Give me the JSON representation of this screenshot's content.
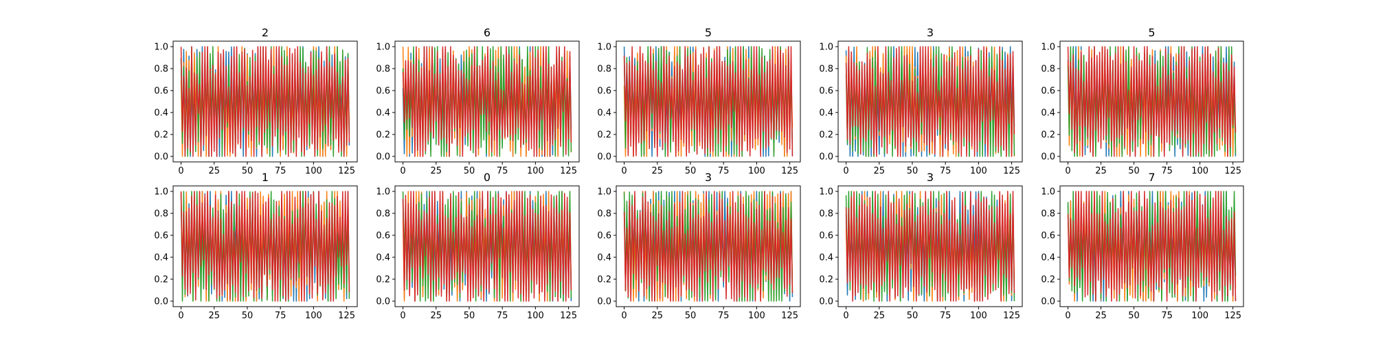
{
  "colors": {
    "series": [
      "#1f77b4",
      "#ff7f0e",
      "#2ca02c",
      "#d62728"
    ],
    "axes": "#000000",
    "background": "#ffffff"
  },
  "chart_data": [
    {
      "type": "line",
      "title": "2",
      "xlim": [
        -6,
        133
      ],
      "ylim": [
        -0.05,
        1.05
      ],
      "x_ticks": [
        0,
        25,
        50,
        75,
        100,
        125
      ],
      "y_ticks": [
        0.0,
        0.2,
        0.4,
        0.6,
        0.8,
        1.0
      ],
      "grid": false,
      "n_points": 128,
      "series_count": 4,
      "seed": 11
    },
    {
      "type": "line",
      "title": "6",
      "xlim": [
        -6,
        133
      ],
      "ylim": [
        -0.05,
        1.05
      ],
      "x_ticks": [
        0,
        25,
        50,
        75,
        100,
        125
      ],
      "y_ticks": [
        0.0,
        0.2,
        0.4,
        0.6,
        0.8,
        1.0
      ],
      "grid": false,
      "n_points": 128,
      "series_count": 4,
      "seed": 23
    },
    {
      "type": "line",
      "title": "5",
      "xlim": [
        -6,
        133
      ],
      "ylim": [
        -0.05,
        1.05
      ],
      "x_ticks": [
        0,
        25,
        50,
        75,
        100,
        125
      ],
      "y_ticks": [
        0.0,
        0.2,
        0.4,
        0.6,
        0.8,
        1.0
      ],
      "grid": false,
      "n_points": 128,
      "series_count": 4,
      "seed": 37
    },
    {
      "type": "line",
      "title": "3",
      "xlim": [
        -6,
        133
      ],
      "ylim": [
        -0.05,
        1.05
      ],
      "x_ticks": [
        0,
        25,
        50,
        75,
        100,
        125
      ],
      "y_ticks": [
        0.0,
        0.2,
        0.4,
        0.6,
        0.8,
        1.0
      ],
      "grid": false,
      "n_points": 128,
      "series_count": 4,
      "seed": 41
    },
    {
      "type": "line",
      "title": "5",
      "xlim": [
        -6,
        133
      ],
      "ylim": [
        -0.05,
        1.05
      ],
      "x_ticks": [
        0,
        25,
        50,
        75,
        100,
        125
      ],
      "y_ticks": [
        0.0,
        0.2,
        0.4,
        0.6,
        0.8,
        1.0
      ],
      "grid": false,
      "n_points": 128,
      "series_count": 4,
      "seed": 53
    },
    {
      "type": "line",
      "title": "1",
      "xlim": [
        -6,
        133
      ],
      "ylim": [
        -0.05,
        1.05
      ],
      "x_ticks": [
        0,
        25,
        50,
        75,
        100,
        125
      ],
      "y_ticks": [
        0.0,
        0.2,
        0.4,
        0.6,
        0.8,
        1.0
      ],
      "grid": false,
      "n_points": 128,
      "series_count": 4,
      "seed": 67
    },
    {
      "type": "line",
      "title": "0",
      "xlim": [
        -6,
        133
      ],
      "ylim": [
        -0.05,
        1.05
      ],
      "x_ticks": [
        0,
        25,
        50,
        75,
        100,
        125
      ],
      "y_ticks": [
        0.0,
        0.2,
        0.4,
        0.6,
        0.8,
        1.0
      ],
      "grid": false,
      "n_points": 128,
      "series_count": 4,
      "seed": 79
    },
    {
      "type": "line",
      "title": "3",
      "xlim": [
        -6,
        133
      ],
      "ylim": [
        -0.05,
        1.05
      ],
      "x_ticks": [
        0,
        25,
        50,
        75,
        100,
        125
      ],
      "y_ticks": [
        0.0,
        0.2,
        0.4,
        0.6,
        0.8,
        1.0
      ],
      "grid": false,
      "n_points": 128,
      "series_count": 4,
      "seed": 83
    },
    {
      "type": "line",
      "title": "3",
      "xlim": [
        -6,
        133
      ],
      "ylim": [
        -0.05,
        1.05
      ],
      "x_ticks": [
        0,
        25,
        50,
        75,
        100,
        125
      ],
      "y_ticks": [
        0.0,
        0.2,
        0.4,
        0.6,
        0.8,
        1.0
      ],
      "grid": false,
      "n_points": 128,
      "series_count": 4,
      "seed": 97
    },
    {
      "type": "line",
      "title": "7",
      "xlim": [
        -6,
        133
      ],
      "ylim": [
        -0.05,
        1.05
      ],
      "x_ticks": [
        0,
        25,
        50,
        75,
        100,
        125
      ],
      "y_ticks": [
        0.0,
        0.2,
        0.4,
        0.6,
        0.8,
        1.0
      ],
      "grid": false,
      "n_points": 128,
      "series_count": 4,
      "seed": 101
    }
  ]
}
